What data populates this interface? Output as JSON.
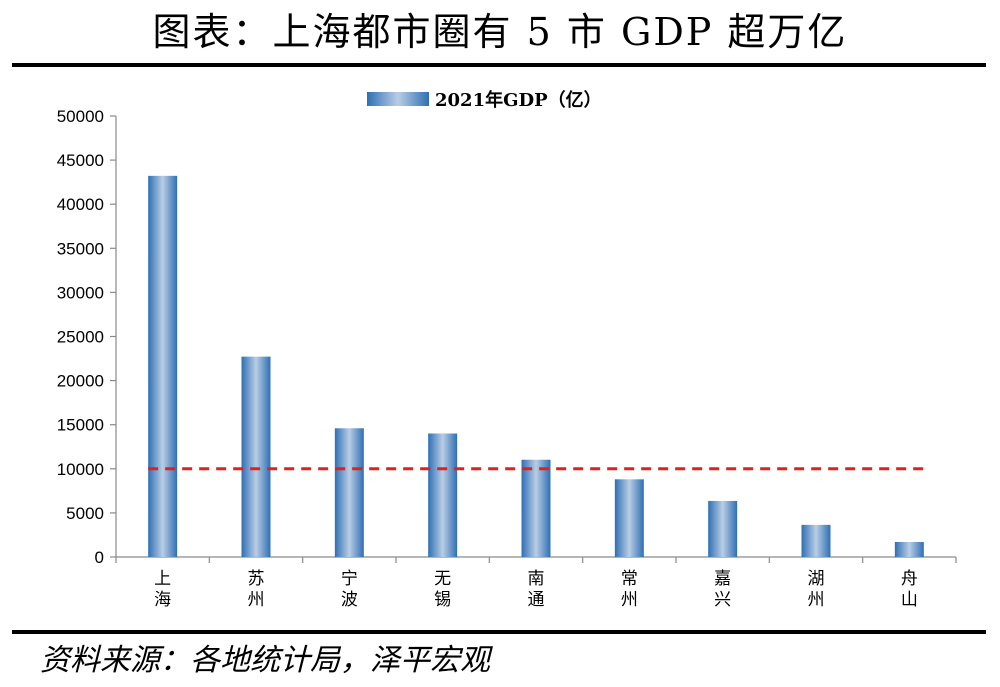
{
  "header": {
    "title": "图表：上海都市圈有 5 市 GDP 超万亿"
  },
  "footer": {
    "source": "资料来源：各地统计局，泽平宏观"
  },
  "chart_data": {
    "type": "bar",
    "categories": [
      "上海",
      "苏州",
      "宁波",
      "无锡",
      "南通",
      "常州",
      "嘉兴",
      "湖州",
      "舟山"
    ],
    "series": [
      {
        "name": "2021年GDP（亿）",
        "values": [
          43215,
          22718,
          14595,
          14003,
          11027,
          8808,
          6355,
          3645,
          1704
        ],
        "color": "#4a86c8"
      }
    ],
    "reference_line": {
      "value": 10000,
      "color": "#e0201b",
      "style": "dashed"
    },
    "ylim": [
      0,
      50000
    ],
    "yticks": [
      0,
      5000,
      10000,
      15000,
      20000,
      25000,
      30000,
      35000,
      40000,
      45000,
      50000
    ],
    "legend_position": "top-center",
    "grid": false
  }
}
